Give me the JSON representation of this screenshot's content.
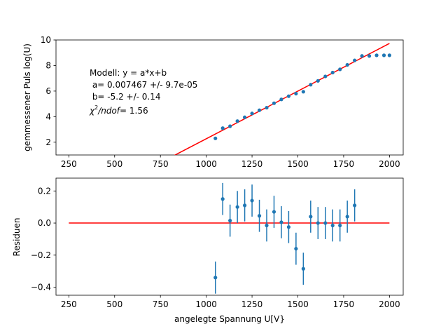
{
  "chart_data": [
    {
      "type": "scatter",
      "xlabel": "",
      "ylabel": "gemmessener Puls log(U)",
      "xlim": [
        180,
        2075
      ],
      "ylim": [
        1,
        10
      ],
      "x_ticks": [
        250,
        500,
        750,
        1000,
        1250,
        1500,
        1750,
        2000
      ],
      "y_ticks": [
        2,
        4,
        6,
        8,
        10
      ],
      "annotation": {
        "lines": [
          "Modell: y = a*x+b",
          " a= 0.007467 +/- 9.7e-05",
          " b= -5.2 +/- 0.14"
        ],
        "chi2_symbol": "χ",
        "chi2_sup": "2",
        "chi2_ndof": "/ndof",
        "chi2_value": "= 1.56"
      },
      "series": [
        {
          "kind": "points",
          "color": "#1f77b4",
          "x": [
            1050,
            1090,
            1130,
            1170,
            1210,
            1250,
            1290,
            1330,
            1370,
            1410,
            1450,
            1490,
            1530,
            1570,
            1610,
            1650,
            1690,
            1730,
            1770,
            1810,
            1850,
            1890,
            1930,
            1970,
            2000
          ],
          "y": [
            2.3,
            3.1,
            3.25,
            3.65,
            3.95,
            4.25,
            4.5,
            4.7,
            5.05,
            5.35,
            5.6,
            5.8,
            5.95,
            6.5,
            6.8,
            7.15,
            7.45,
            7.7,
            8.05,
            8.4,
            8.75,
            8.75,
            8.8,
            8.8,
            8.8
          ]
        },
        {
          "kind": "line",
          "color": "#ff0000",
          "x": [
            250,
            2000
          ],
          "y": [
            -3.33,
            9.73
          ]
        }
      ]
    },
    {
      "type": "scatter",
      "xlabel": "angelegte Spannung U[V}",
      "ylabel": "Residuen",
      "xlim": [
        180,
        2075
      ],
      "ylim": [
        -0.45,
        0.28
      ],
      "x_ticks": [
        250,
        500,
        750,
        1000,
        1250,
        1500,
        1750,
        2000
      ],
      "y_ticks": [
        0.2,
        0.0,
        -0.2,
        -0.4
      ],
      "series": [
        {
          "kind": "errorbar",
          "color": "#1f77b4",
          "x": [
            1050,
            1090,
            1130,
            1170,
            1210,
            1250,
            1290,
            1330,
            1370,
            1410,
            1450,
            1490,
            1530,
            1570,
            1610,
            1650,
            1690,
            1730,
            1770,
            1810
          ],
          "y": [
            -0.34,
            0.15,
            0.015,
            0.1,
            0.11,
            0.14,
            0.045,
            -0.015,
            0.07,
            0.005,
            -0.025,
            -0.16,
            -0.285,
            0.04,
            0.0,
            0.0,
            -0.015,
            -0.015,
            0.04,
            0.11
          ],
          "err": [
            0.1,
            0.1,
            0.1,
            0.1,
            0.1,
            0.1,
            0.1,
            0.1,
            0.1,
            0.1,
            0.1,
            0.1,
            0.1,
            0.1,
            0.1,
            0.1,
            0.1,
            0.1,
            0.1,
            0.1
          ]
        },
        {
          "kind": "line",
          "color": "#ff0000",
          "x": [
            250,
            2000
          ],
          "y": [
            0,
            0
          ]
        }
      ]
    }
  ]
}
